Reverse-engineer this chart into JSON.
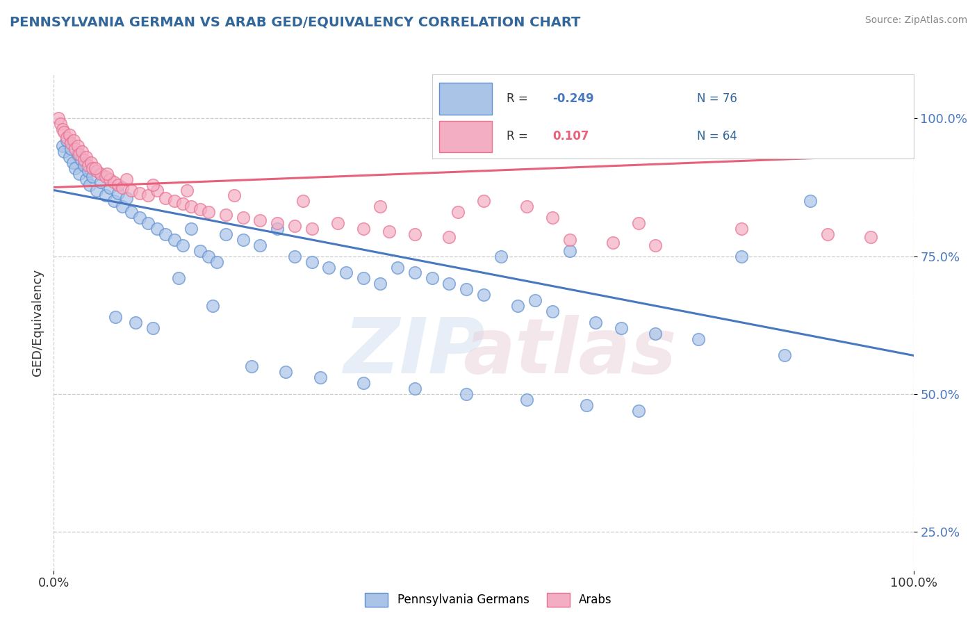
{
  "title": "PENNSYLVANIA GERMAN VS ARAB GED/EQUIVALENCY CORRELATION CHART",
  "source": "Source: ZipAtlas.com",
  "ylabel": "GED/Equivalency",
  "legend_blue_r": "-0.249",
  "legend_blue_n": "76",
  "legend_pink_r": "0.107",
  "legend_pink_n": "64",
  "legend_blue_label": "Pennsylvania Germans",
  "legend_pink_label": "Arabs",
  "blue_color": "#aac4e8",
  "pink_color": "#f4aec4",
  "blue_line_color": "#4878c0",
  "pink_line_color": "#e8607a",
  "blue_edge_color": "#6090d0",
  "pink_edge_color": "#e87090",
  "xmin": 0.0,
  "xmax": 100.0,
  "ymin": 18.0,
  "ymax": 108.0,
  "blue_scatter_x": [
    1.0,
    1.2,
    1.5,
    1.8,
    2.0,
    2.2,
    2.5,
    2.8,
    3.0,
    3.2,
    3.5,
    3.8,
    4.0,
    4.2,
    4.5,
    5.0,
    5.5,
    6.0,
    6.5,
    7.0,
    7.5,
    8.0,
    8.5,
    9.0,
    10.0,
    11.0,
    12.0,
    13.0,
    14.0,
    15.0,
    16.0,
    17.0,
    18.0,
    19.0,
    20.0,
    22.0,
    24.0,
    26.0,
    28.0,
    30.0,
    32.0,
    34.0,
    36.0,
    38.0,
    40.0,
    42.0,
    44.0,
    46.0,
    48.0,
    50.0,
    52.0,
    54.0,
    56.0,
    58.0,
    60.0,
    63.0,
    66.0,
    70.0,
    75.0,
    80.0,
    85.0,
    88.0,
    7.2,
    9.5,
    11.5,
    14.5,
    18.5,
    23.0,
    27.0,
    31.0,
    36.0,
    42.0,
    48.0,
    55.0,
    62.0,
    68.0
  ],
  "blue_scatter_y": [
    95.0,
    94.0,
    96.0,
    93.0,
    94.5,
    92.0,
    91.0,
    93.5,
    90.0,
    92.5,
    91.5,
    89.0,
    90.5,
    88.0,
    89.5,
    87.0,
    88.5,
    86.0,
    87.5,
    85.0,
    86.5,
    84.0,
    85.5,
    83.0,
    82.0,
    81.0,
    80.0,
    79.0,
    78.0,
    77.0,
    80.0,
    76.0,
    75.0,
    74.0,
    79.0,
    78.0,
    77.0,
    80.0,
    75.0,
    74.0,
    73.0,
    72.0,
    71.0,
    70.0,
    73.0,
    72.0,
    71.0,
    70.0,
    69.0,
    68.0,
    75.0,
    66.0,
    67.0,
    65.0,
    76.0,
    63.0,
    62.0,
    61.0,
    60.0,
    75.0,
    57.0,
    85.0,
    64.0,
    63.0,
    62.0,
    71.0,
    66.0,
    55.0,
    54.0,
    53.0,
    52.0,
    51.0,
    50.0,
    49.0,
    48.0,
    47.0
  ],
  "pink_scatter_x": [
    0.5,
    0.8,
    1.0,
    1.2,
    1.5,
    1.8,
    2.0,
    2.3,
    2.5,
    2.8,
    3.0,
    3.3,
    3.5,
    3.8,
    4.0,
    4.3,
    4.5,
    5.0,
    5.5,
    6.0,
    6.5,
    7.0,
    7.5,
    8.0,
    9.0,
    10.0,
    11.0,
    12.0,
    13.0,
    14.0,
    15.0,
    16.0,
    17.0,
    18.0,
    20.0,
    22.0,
    24.0,
    26.0,
    28.0,
    30.0,
    33.0,
    36.0,
    39.0,
    42.0,
    46.0,
    50.0,
    55.0,
    60.0,
    65.0,
    70.0,
    4.8,
    6.2,
    8.5,
    11.5,
    15.5,
    21.0,
    29.0,
    38.0,
    47.0,
    58.0,
    68.0,
    80.0,
    90.0,
    95.0
  ],
  "pink_scatter_y": [
    100.0,
    99.0,
    98.0,
    97.5,
    96.5,
    97.0,
    95.5,
    96.0,
    94.5,
    95.0,
    93.5,
    94.0,
    92.5,
    93.0,
    91.5,
    92.0,
    91.0,
    90.5,
    90.0,
    89.5,
    89.0,
    88.5,
    88.0,
    87.5,
    87.0,
    86.5,
    86.0,
    87.0,
    85.5,
    85.0,
    84.5,
    84.0,
    83.5,
    83.0,
    82.5,
    82.0,
    81.5,
    81.0,
    80.5,
    80.0,
    81.0,
    80.0,
    79.5,
    79.0,
    78.5,
    85.0,
    84.0,
    78.0,
    77.5,
    77.0,
    91.0,
    90.0,
    89.0,
    88.0,
    87.0,
    86.0,
    85.0,
    84.0,
    83.0,
    82.0,
    81.0,
    80.0,
    79.0,
    78.5
  ],
  "blue_trend_x": [
    0.0,
    100.0
  ],
  "blue_trend_y": [
    87.0,
    57.0
  ],
  "pink_trend_x": [
    0.0,
    100.0
  ],
  "pink_trend_y": [
    87.5,
    93.5
  ]
}
